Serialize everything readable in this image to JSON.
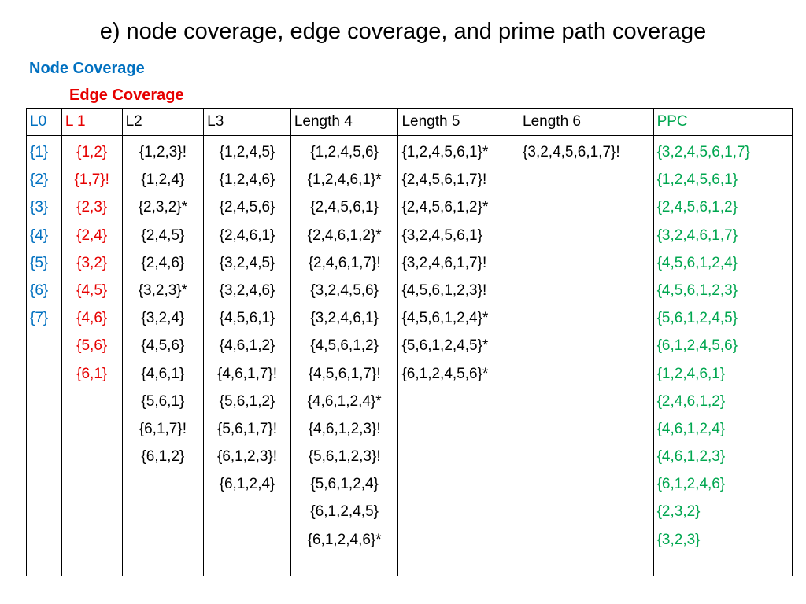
{
  "title": "e) node coverage, edge coverage, and prime path coverage",
  "legend": {
    "node_coverage": "Node Coverage",
    "edge_coverage": "Edge Coverage"
  },
  "colors": {
    "node": "#0070c0",
    "edge": "#e60000",
    "ppc": "#00a64f"
  },
  "table": {
    "headers": [
      "L0",
      "L 1",
      "L2",
      "L3",
      "Length 4",
      "Length 5",
      "Length 6",
      "PPC"
    ],
    "columns": [
      [
        "{1}",
        "{2}",
        "{3}",
        "{4}",
        "{5}",
        "{6}",
        "{7}"
      ],
      [
        "{1,2}",
        "{1,7}!",
        "{2,3}",
        "{2,4}",
        "{3,2}",
        "{4,5}",
        "{4,6}",
        "{5,6}",
        "{6,1}"
      ],
      [
        "{1,2,3}!",
        "{1,2,4}",
        "{2,3,2}*",
        "{2,4,5}",
        "{2,4,6}",
        "{3,2,3}*",
        "{3,2,4}",
        "{4,5,6}",
        "{4,6,1}",
        "{5,6,1}",
        "{6,1,7}!",
        "{6,1,2}"
      ],
      [
        "{1,2,4,5}",
        "{1,2,4,6}",
        "{2,4,5,6}",
        "{2,4,6,1}",
        "{3,2,4,5}",
        "{3,2,4,6}",
        "{4,5,6,1}",
        "{4,6,1,2}",
        "{4,6,1,7}!",
        "{5,6,1,2}",
        "{5,6,1,7}!",
        "{6,1,2,3}!",
        "{6,1,2,4}"
      ],
      [
        "{1,2,4,5,6}",
        "{1,2,4,6,1}*",
        "{2,4,5,6,1}",
        "{2,4,6,1,2}*",
        "{2,4,6,1,7}!",
        "{3,2,4,5,6}",
        "{3,2,4,6,1}",
        "{4,5,6,1,2}",
        "{4,5,6,1,7}!",
        "{4,6,1,2,4}*",
        "{4,6,1,2,3}!",
        "{5,6,1,2,3}!",
        "{5,6,1,2,4}",
        "{6,1,2,4,5}",
        "{6,1,2,4,6}*"
      ],
      [
        "{1,2,4,5,6,1}*",
        "{2,4,5,6,1,7}!",
        "{2,4,5,6,1,2}*",
        "{3,2,4,5,6,1}",
        "{3,2,4,6,1,7}!",
        "{4,5,6,1,2,3}!",
        "{4,5,6,1,2,4}*",
        "{5,6,1,2,4,5}*",
        "{6,1,2,4,5,6}*"
      ],
      [
        "{3,2,4,5,6,1,7}!"
      ],
      [
        "{3,2,4,5,6,1,7}",
        "{1,2,4,5,6,1}",
        "{2,4,5,6,1,2}",
        "{3,2,4,6,1,7}",
        "{4,5,6,1,2,4}",
        "{4,5,6,1,2,3}",
        "{5,6,1,2,4,5}",
        "{6,1,2,4,5,6}",
        "{1,2,4,6,1}",
        "{2,4,6,1,2}",
        "{4,6,1,2,4}",
        "{4,6,1,2,3}",
        "{6,1,2,4,6}",
        "{2,3,2}",
        "{3,2,3}"
      ]
    ]
  }
}
